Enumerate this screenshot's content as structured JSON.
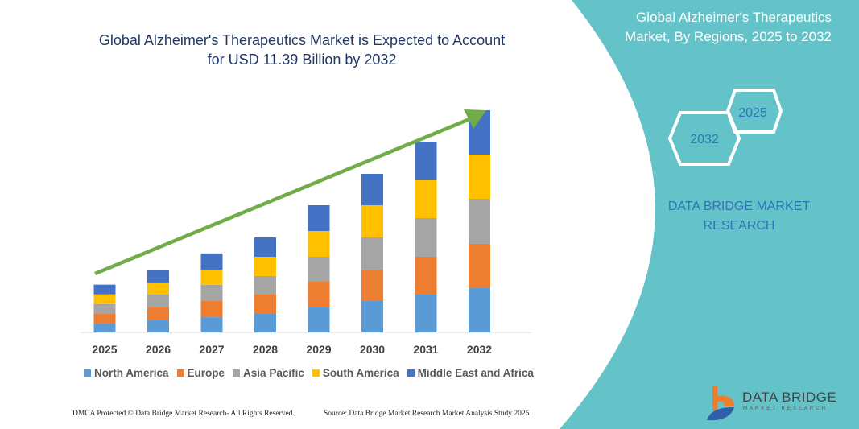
{
  "title_lines": [
    "Global Alzheimer's Therapeutics Market is Expected to Account",
    "for USD 11.39 Billion by 2032"
  ],
  "side_panel": {
    "title_lines": [
      "Global Alzheimer's Therapeutics",
      "Market, By Regions, 2025 to 2032"
    ],
    "hex_start": "2025",
    "hex_end": "2032",
    "brand_lines": [
      "DATA BRIDGE MARKET",
      "RESEARCH"
    ],
    "panel_color": "#63c3c9"
  },
  "footer": {
    "copyright": "DMCA Protected © Data Bridge Market Research- All Rights Reserved.",
    "source": "Source: Data Bridge Market Research Market Analysis Study 2025"
  },
  "logo": {
    "name": "DATA BRIDGE",
    "tagline": "MARKET RESEARCH"
  },
  "chart_data": {
    "type": "bar",
    "stacked": true,
    "title": "Global Alzheimer's Therapeutics Market is Expected to Account for USD 11.39 Billion by 2032",
    "xlabel": "",
    "ylabel": "",
    "grid": false,
    "legend_position": "bottom",
    "trend_arrow": true,
    "categories": [
      "2025",
      "2026",
      "2027",
      "2028",
      "2029",
      "2030",
      "2031",
      "2032"
    ],
    "ylim": [
      0,
      11.39
    ],
    "series": [
      {
        "name": "North America",
        "color": "#5b9bd5",
        "values": [
          0.45,
          0.62,
          0.78,
          0.95,
          1.28,
          1.61,
          1.94,
          2.27
        ]
      },
      {
        "name": "Europe",
        "color": "#ed7d31",
        "values": [
          0.5,
          0.66,
          0.83,
          0.99,
          1.32,
          1.61,
          1.94,
          2.27
        ]
      },
      {
        "name": "Asia Pacific",
        "color": "#a5a5a5",
        "values": [
          0.5,
          0.66,
          0.83,
          0.95,
          1.28,
          1.65,
          1.98,
          2.31
        ]
      },
      {
        "name": "South America",
        "color": "#ffc000",
        "values": [
          0.5,
          0.62,
          0.78,
          0.99,
          1.32,
          1.65,
          1.94,
          2.27
        ]
      },
      {
        "name": "Middle East and Africa",
        "color": "#4472c4",
        "values": [
          0.5,
          0.62,
          0.83,
          0.99,
          1.32,
          1.61,
          1.98,
          2.27
        ]
      }
    ]
  }
}
